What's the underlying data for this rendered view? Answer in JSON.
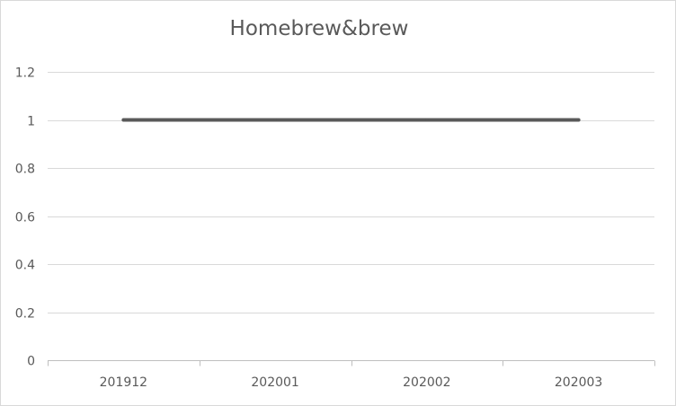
{
  "chart_data": {
    "type": "line",
    "title": "Homebrew&brew",
    "xlabel": "",
    "ylabel": "",
    "categories": [
      "201912",
      "202001",
      "202002",
      "202003"
    ],
    "series": [
      {
        "values": [
          1,
          1,
          1,
          1
        ]
      }
    ],
    "ylim": [
      0,
      1.2
    ],
    "yticks": [
      "0",
      "0.2",
      "0.4",
      "0.6",
      "0.8",
      "1",
      "1.2"
    ],
    "grid": true,
    "legend": "none",
    "colors": {
      "line": "#595959",
      "grid": "#d9d9d9",
      "axis": "#bfbfbf",
      "text": "#595959"
    }
  }
}
